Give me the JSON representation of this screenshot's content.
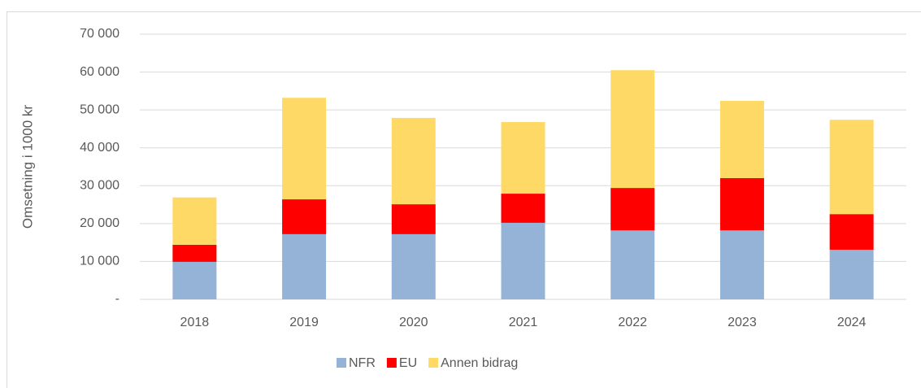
{
  "chart_data": {
    "type": "stacked_bar",
    "y_label": "Omsetning i 1000 kr",
    "categories": [
      "2018",
      "2019",
      "2020",
      "2021",
      "2022",
      "2023",
      "2024"
    ],
    "series": [
      {
        "name": "NFR",
        "color": "#95b3d7",
        "values": [
          9900,
          17200,
          17200,
          20200,
          18200,
          18200,
          13100
        ]
      },
      {
        "name": "EU",
        "color": "#ff0000",
        "values": [
          4500,
          9200,
          7900,
          7700,
          11200,
          13800,
          9400
        ]
      },
      {
        "name": "Annen bidrag",
        "color": "#ffd966",
        "values": [
          12500,
          26800,
          22800,
          18900,
          31100,
          20400,
          24900
        ]
      }
    ],
    "ylim": [
      0,
      70000
    ],
    "yticks": [
      {
        "value": 0,
        "label": "-"
      },
      {
        "value": 10000,
        "label": "10 000"
      },
      {
        "value": 20000,
        "label": "20 000"
      },
      {
        "value": 30000,
        "label": "30 000"
      },
      {
        "value": 40000,
        "label": "40 000"
      },
      {
        "value": 50000,
        "label": "50 000"
      },
      {
        "value": 60000,
        "label": "60 000"
      },
      {
        "value": 70000,
        "label": "70 000"
      }
    ],
    "grid": true,
    "legend": "bottom"
  }
}
